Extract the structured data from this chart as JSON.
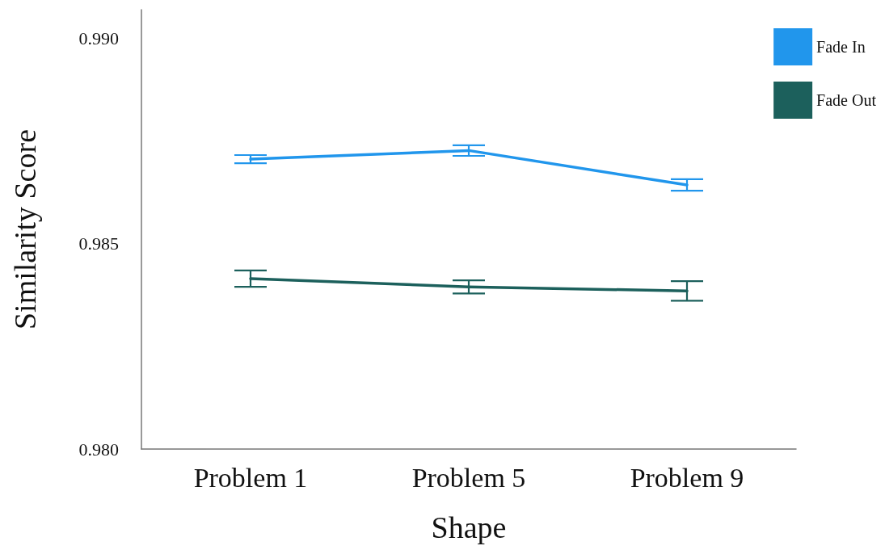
{
  "chart_data": {
    "type": "line",
    "xlabel": "Shape",
    "ylabel": "Similarity Score",
    "categories": [
      "Problem 1",
      "Problem 5",
      "Problem 9"
    ],
    "series": [
      {
        "name": "Fade In",
        "color": "#2196ec",
        "values": [
          0.98706,
          0.98727,
          0.98643
        ],
        "errors": [
          0.0001,
          0.00013,
          0.00014
        ]
      },
      {
        "name": "Fade Out",
        "color": "#1c605c",
        "values": [
          0.98415,
          0.98395,
          0.98385
        ],
        "errors": [
          0.0002,
          0.00016,
          0.00024
        ]
      }
    ],
    "ylim": [
      0.98,
      0.9907
    ],
    "yticks": [
      {
        "value": 0.98,
        "label": "0.980"
      },
      {
        "value": 0.985,
        "label": "0.985"
      },
      {
        "value": 0.99,
        "label": "0.990"
      }
    ],
    "legend": "top right",
    "marker": "none",
    "line_style": "solid"
  }
}
